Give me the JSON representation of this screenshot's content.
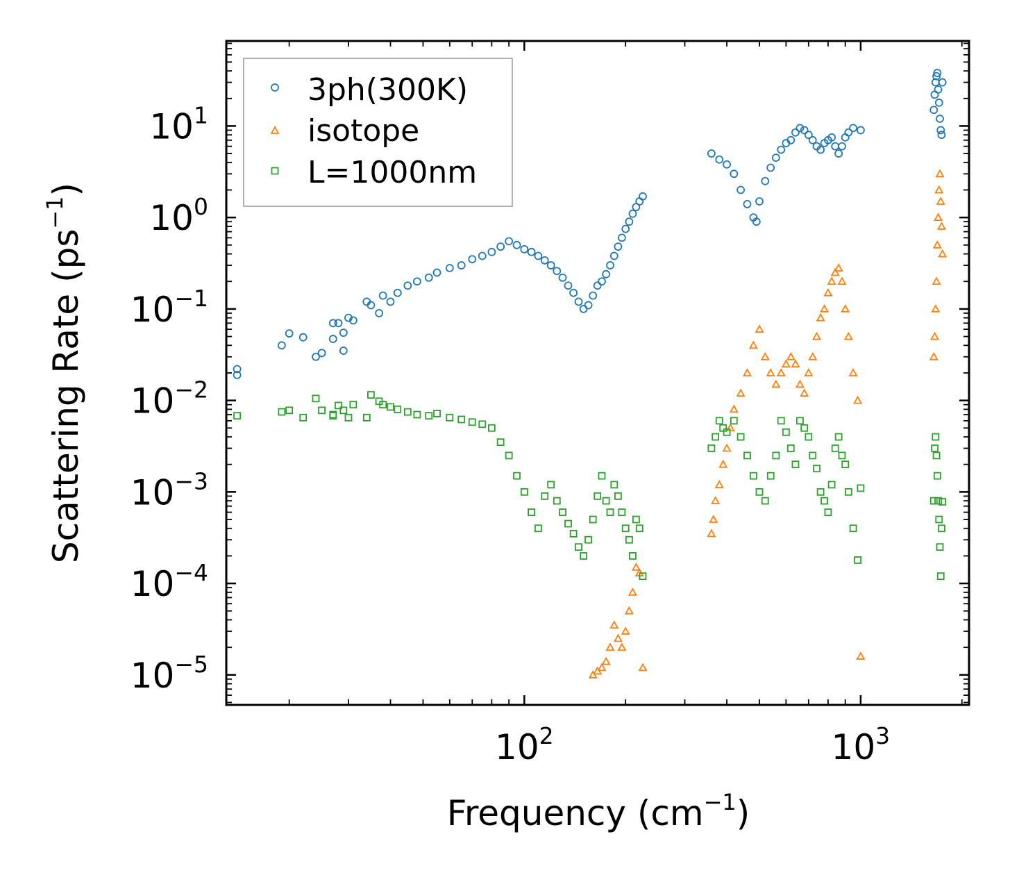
{
  "chart_data": {
    "type": "scatter",
    "xscale": "log",
    "yscale": "log",
    "xlim": [
      13,
      2100
    ],
    "ylim": [
      4.7e-06,
      85
    ],
    "xlabel": "Frequency (cm",
    "xlabel_sup": "−1",
    "xlabel_end": ")",
    "ylabel": "Scattering Rate (ps",
    "ylabel_sup": "−1",
    "ylabel_end": ")",
    "x_ticks": [
      {
        "value": 100,
        "base": "10",
        "exp": "2"
      },
      {
        "value": 1000,
        "base": "10",
        "exp": "3"
      }
    ],
    "y_ticks": [
      {
        "value": 1e-05,
        "base": "10",
        "exp": "−5"
      },
      {
        "value": 0.0001,
        "base": "10",
        "exp": "−4"
      },
      {
        "value": 0.001,
        "base": "10",
        "exp": "−3"
      },
      {
        "value": 0.01,
        "base": "10",
        "exp": "−2"
      },
      {
        "value": 0.1,
        "base": "10",
        "exp": "−1"
      },
      {
        "value": 1,
        "base": "10",
        "exp": "0"
      },
      {
        "value": 10,
        "base": "10",
        "exp": "1"
      }
    ],
    "legend_position": "top-left",
    "series": [
      {
        "name": "3ph(300K)",
        "marker": "circle",
        "color": "#1f77b4",
        "x": [
          14,
          14,
          19,
          20,
          22,
          24,
          25,
          27,
          27,
          28,
          29,
          29,
          30,
          31,
          34,
          35,
          37,
          38,
          40,
          42,
          45,
          48,
          52,
          55,
          60,
          65,
          70,
          75,
          80,
          85,
          90,
          95,
          100,
          105,
          110,
          115,
          120,
          125,
          130,
          135,
          140,
          145,
          150,
          155,
          160,
          165,
          170,
          175,
          180,
          185,
          190,
          195,
          200,
          205,
          210,
          215,
          220,
          225,
          360,
          380,
          400,
          420,
          440,
          460,
          480,
          490,
          500,
          520,
          540,
          560,
          580,
          600,
          620,
          640,
          660,
          680,
          700,
          720,
          740,
          760,
          780,
          800,
          820,
          840,
          860,
          880,
          900,
          920,
          950,
          1000,
          1650,
          1660,
          1670,
          1680,
          1690,
          1700,
          1710,
          1720,
          1730,
          1740,
          1750
        ],
        "y": [
          0.022,
          0.019,
          0.04,
          0.054,
          0.049,
          0.03,
          0.033,
          0.07,
          0.047,
          0.07,
          0.055,
          0.035,
          0.08,
          0.075,
          0.12,
          0.11,
          0.09,
          0.14,
          0.12,
          0.15,
          0.18,
          0.2,
          0.22,
          0.25,
          0.28,
          0.3,
          0.35,
          0.38,
          0.42,
          0.48,
          0.55,
          0.5,
          0.45,
          0.42,
          0.38,
          0.34,
          0.3,
          0.26,
          0.22,
          0.18,
          0.15,
          0.12,
          0.1,
          0.11,
          0.14,
          0.18,
          0.2,
          0.24,
          0.3,
          0.38,
          0.48,
          0.6,
          0.75,
          0.9,
          1.1,
          1.3,
          1.5,
          1.7,
          5.0,
          4.3,
          3.8,
          3.0,
          2.0,
          1.4,
          1.0,
          0.9,
          1.5,
          2.5,
          3.5,
          4.5,
          5.5,
          6.5,
          7.0,
          8.5,
          9.5,
          9.0,
          8.0,
          7.0,
          6.0,
          5.5,
          6.5,
          7.0,
          7.5,
          6.0,
          5.0,
          6.0,
          7.5,
          8.5,
          9.5,
          9.0,
          15,
          22,
          30,
          35,
          38,
          25,
          18,
          12,
          9,
          8,
          30
        ]
      },
      {
        "name": "isotope",
        "marker": "triangle",
        "color": "#ff7f0e",
        "x": [
          160,
          165,
          170,
          175,
          180,
          185,
          190,
          195,
          200,
          205,
          210,
          215,
          220,
          225,
          360,
          365,
          370,
          380,
          390,
          400,
          410,
          420,
          440,
          460,
          480,
          500,
          520,
          540,
          560,
          580,
          600,
          620,
          640,
          660,
          680,
          700,
          720,
          740,
          760,
          780,
          800,
          820,
          840,
          860,
          880,
          900,
          920,
          950,
          980,
          1000,
          1650,
          1660,
          1670,
          1680,
          1690,
          1700,
          1710,
          1720,
          1730,
          1740,
          1750
        ],
        "y": [
          1e-05,
          1.1e-05,
          1.2e-05,
          1.4e-05,
          2e-05,
          3.5e-05,
          2.5e-05,
          2e-05,
          3e-05,
          5e-05,
          8e-05,
          0.00015,
          0.00013,
          1.2e-05,
          0.00035,
          0.0005,
          0.0008,
          0.0012,
          0.002,
          0.003,
          0.005,
          0.008,
          0.012,
          0.02,
          0.04,
          0.06,
          0.03,
          0.02,
          0.015,
          0.02,
          0.025,
          0.03,
          0.025,
          0.015,
          0.012,
          0.02,
          0.03,
          0.05,
          0.08,
          0.1,
          0.15,
          0.2,
          0.25,
          0.28,
          0.2,
          0.1,
          0.05,
          0.02,
          0.01,
          1.6e-05,
          0.03,
          0.05,
          0.1,
          0.2,
          0.5,
          1.0,
          2.0,
          3.0,
          1.5,
          0.8,
          0.4
        ]
      },
      {
        "name": "L=1000nm",
        "marker": "square",
        "color": "#2ca02c",
        "x": [
          14,
          19,
          20,
          22,
          24,
          25,
          27,
          27,
          28,
          29,
          30,
          31,
          34,
          35,
          37,
          38,
          40,
          42,
          45,
          48,
          52,
          55,
          60,
          65,
          70,
          75,
          80,
          85,
          90,
          95,
          100,
          105,
          110,
          115,
          120,
          125,
          130,
          135,
          140,
          145,
          150,
          155,
          160,
          165,
          170,
          175,
          180,
          185,
          190,
          195,
          200,
          205,
          210,
          215,
          220,
          225,
          360,
          370,
          380,
          390,
          400,
          420,
          440,
          460,
          480,
          500,
          520,
          540,
          560,
          580,
          600,
          620,
          640,
          660,
          680,
          700,
          720,
          740,
          760,
          780,
          800,
          820,
          840,
          860,
          880,
          900,
          920,
          950,
          980,
          1000,
          1650,
          1660,
          1670,
          1680,
          1690,
          1700,
          1710,
          1720,
          1730,
          1740,
          1750
        ],
        "y": [
          0.0068,
          0.0075,
          0.0078,
          0.0065,
          0.0105,
          0.0078,
          0.007,
          0.0068,
          0.0088,
          0.0078,
          0.0065,
          0.009,
          0.0065,
          0.0115,
          0.0098,
          0.009,
          0.0085,
          0.008,
          0.0075,
          0.007,
          0.0068,
          0.0072,
          0.0065,
          0.0062,
          0.0058,
          0.0055,
          0.005,
          0.0035,
          0.0025,
          0.0015,
          0.001,
          0.0006,
          0.0004,
          0.0009,
          0.0012,
          0.0008,
          0.0006,
          0.00045,
          0.00035,
          0.00025,
          0.0002,
          0.0003,
          0.0005,
          0.0009,
          0.0015,
          0.0008,
          0.0006,
          0.0012,
          0.0009,
          0.0006,
          0.0004,
          0.0003,
          0.0002,
          0.0005,
          0.0004,
          0.00012,
          0.003,
          0.004,
          0.006,
          0.005,
          0.0045,
          0.006,
          0.004,
          0.0025,
          0.0015,
          0.001,
          0.0008,
          0.0015,
          0.0025,
          0.006,
          0.0045,
          0.003,
          0.002,
          0.006,
          0.005,
          0.004,
          0.0025,
          0.0018,
          0.001,
          0.0008,
          0.0006,
          0.0012,
          0.003,
          0.004,
          0.0025,
          0.002,
          0.001,
          0.0004,
          0.00018,
          0.0011,
          0.0008,
          0.003,
          0.004,
          0.0025,
          0.0015,
          0.0008,
          0.0005,
          0.00025,
          0.00012,
          0.0004,
          0.00078
        ]
      }
    ]
  }
}
